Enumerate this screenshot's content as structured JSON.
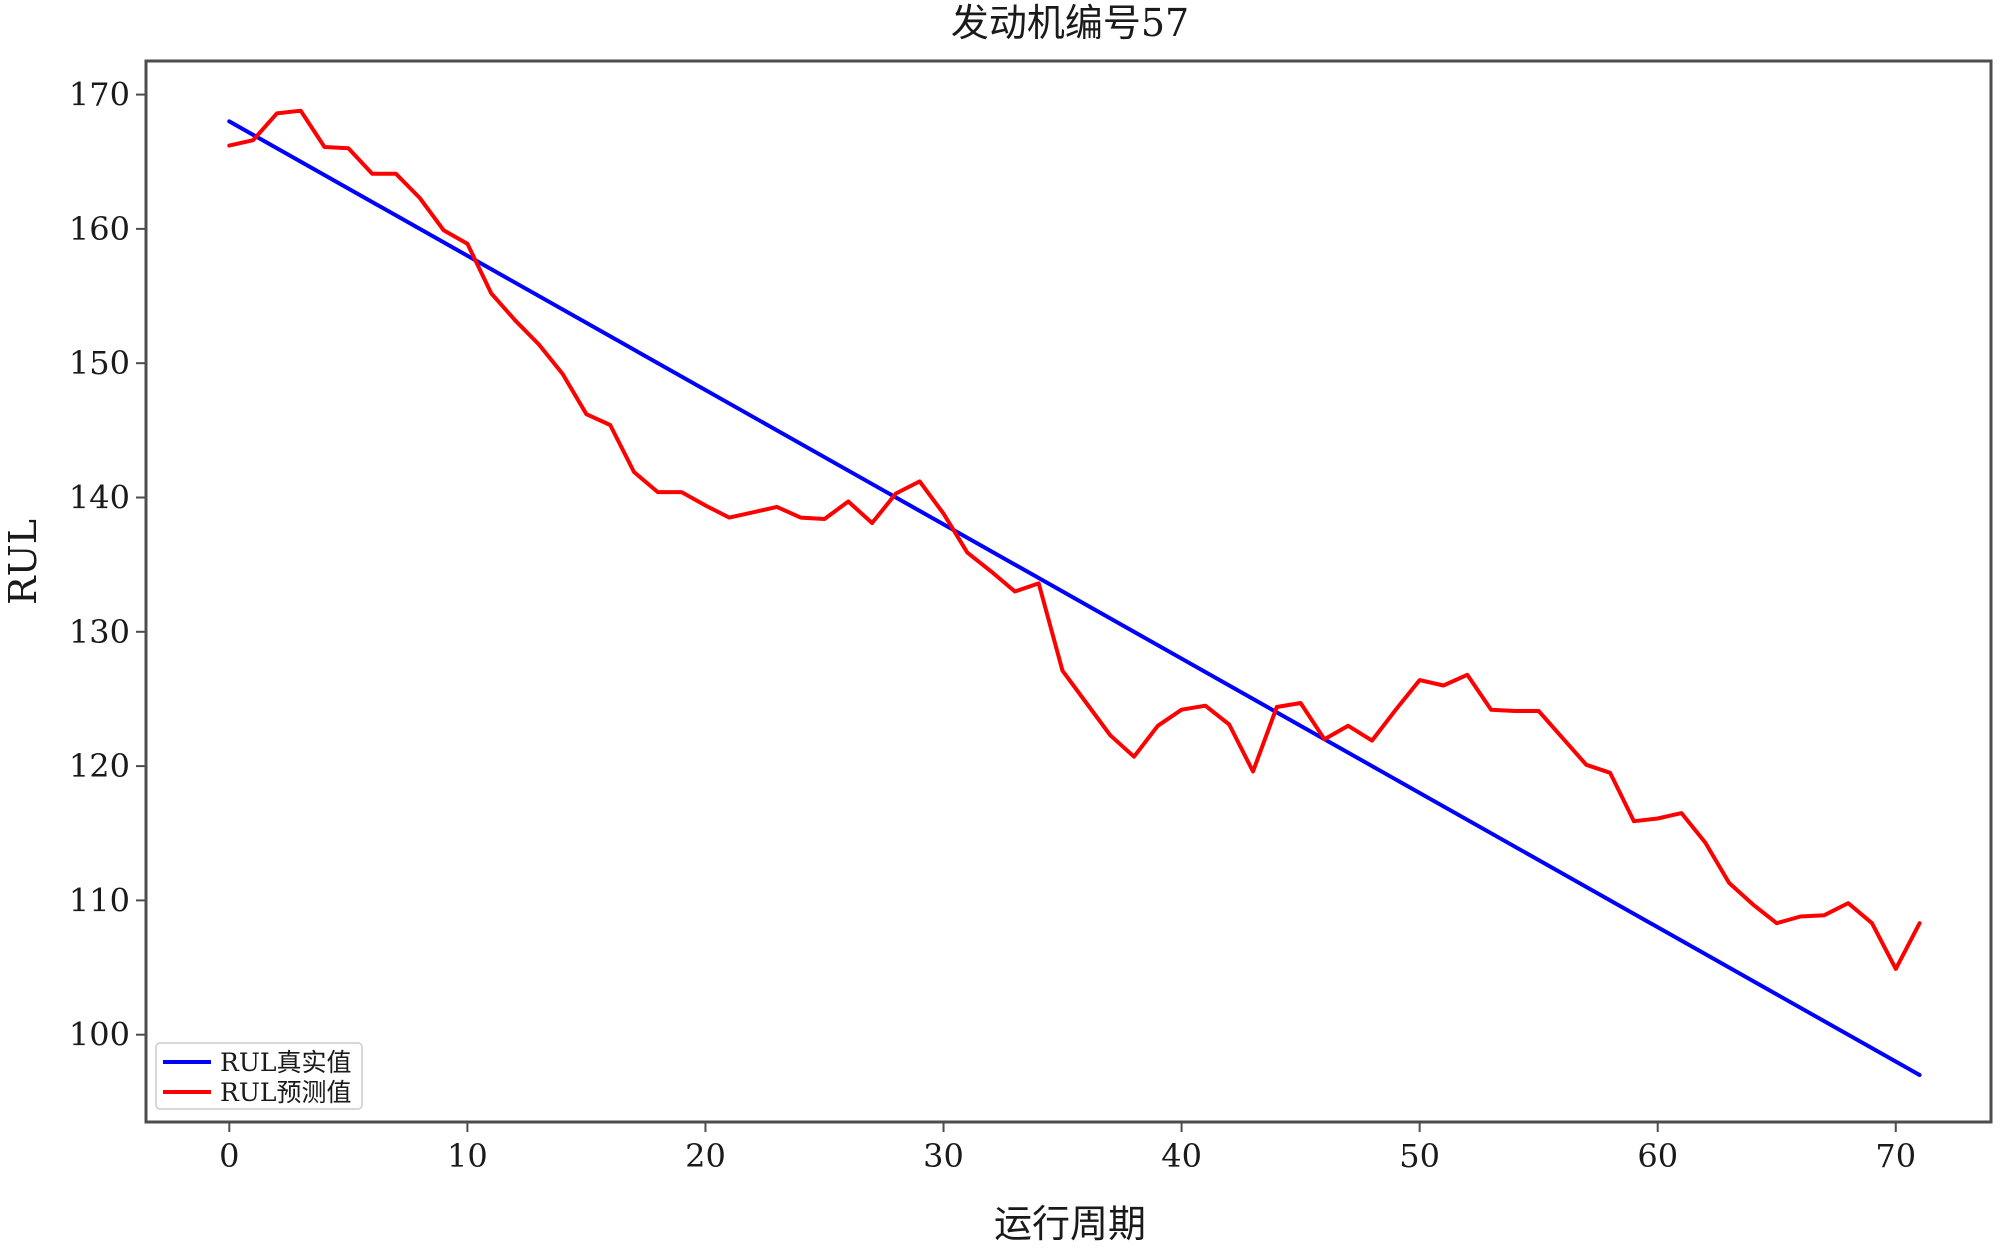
{
  "chart_data": {
    "type": "line",
    "title": "发动机编号57",
    "xlabel": "运行周期",
    "ylabel": "RUL",
    "xlim": [
      -3.5,
      74
    ],
    "ylim": [
      93.5,
      172.5
    ],
    "xticks": [
      0,
      10,
      20,
      30,
      40,
      50,
      60,
      70
    ],
    "yticks": [
      100,
      110,
      120,
      130,
      140,
      150,
      160,
      170
    ],
    "grid": false,
    "legend_position": "lower-left",
    "series": [
      {
        "name": "RUL真实值",
        "color": "#0000ff",
        "x": [
          0,
          71
        ],
        "y": [
          168,
          97
        ]
      },
      {
        "name": "RUL预测值",
        "color": "#ff0000",
        "x": [
          0,
          1,
          2,
          3,
          4,
          5,
          6,
          7,
          8,
          9,
          10,
          11,
          12,
          13,
          14,
          15,
          16,
          17,
          18,
          19,
          20,
          21,
          22,
          23,
          24,
          25,
          26,
          27,
          28,
          29,
          30,
          31,
          32,
          33,
          34,
          35,
          36,
          37,
          38,
          39,
          40,
          41,
          42,
          43,
          44,
          45,
          46,
          47,
          48,
          49,
          50,
          51,
          52,
          53,
          54,
          55,
          56,
          57,
          58,
          59,
          60,
          61,
          62,
          63,
          64,
          65,
          66,
          67,
          68,
          69,
          70,
          71
        ],
        "y": [
          166.2,
          166.6,
          168.6,
          168.8,
          166.1,
          166.0,
          164.1,
          164.1,
          162.3,
          159.9,
          158.9,
          155.2,
          153.2,
          151.4,
          149.2,
          146.2,
          145.4,
          141.9,
          140.4,
          140.4,
          139.4,
          138.5,
          138.9,
          139.3,
          138.5,
          138.4,
          139.7,
          138.1,
          140.3,
          141.2,
          138.8,
          135.9,
          134.5,
          133.0,
          133.6,
          127.1,
          124.7,
          122.3,
          120.7,
          123.0,
          124.2,
          124.5,
          123.1,
          119.6,
          124.4,
          124.7,
          122.0,
          123.0,
          121.9,
          124.2,
          126.4,
          126.0,
          126.8,
          124.2,
          124.1,
          124.1,
          122.1,
          120.1,
          119.5,
          115.9,
          116.1,
          116.5,
          114.3,
          111.3,
          109.7,
          108.3,
          108.8,
          108.9,
          109.8,
          108.3,
          104.9,
          108.3
        ]
      }
    ]
  }
}
